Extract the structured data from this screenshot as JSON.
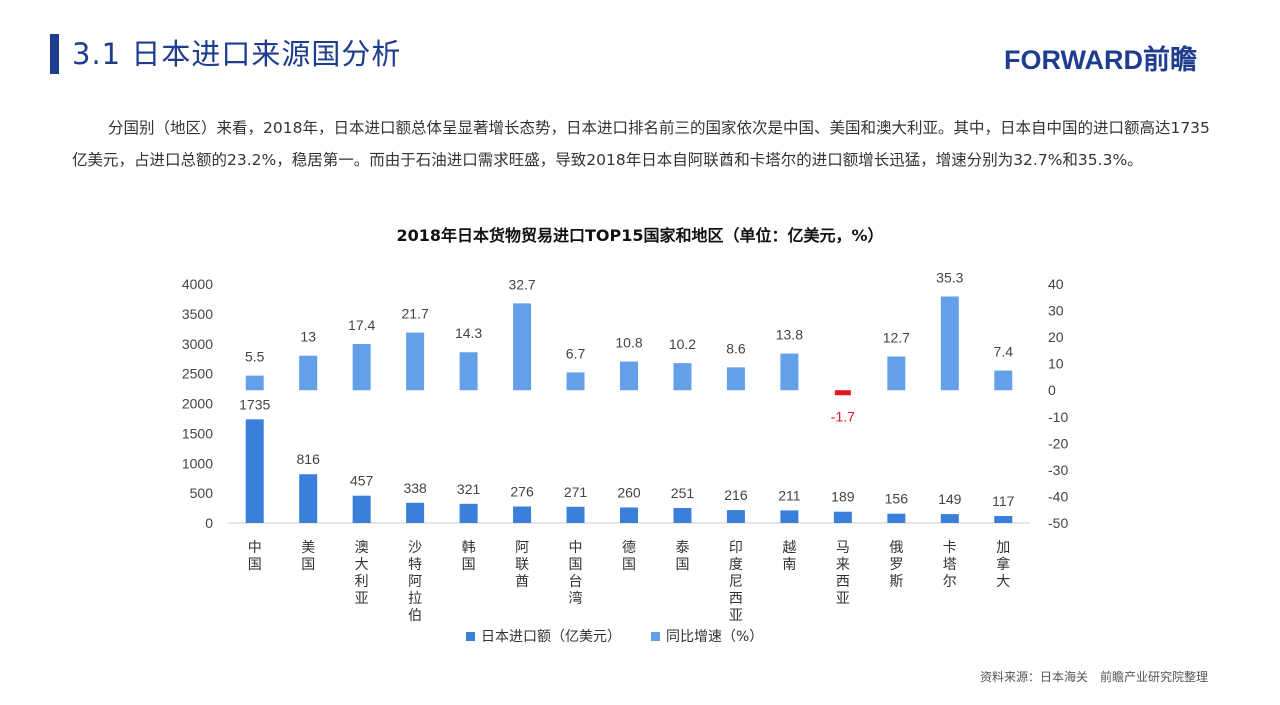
{
  "header": {
    "title": "3.1 日本进口来源国分析",
    "logo": "FORWARD前瞻"
  },
  "paragraph": "分国别（地区）来看，2018年，日本进口额总体呈显著增长态势，日本进口排名前三的国家依次是中国、美国和澳大利亚。其中，日本自中国的进口额高达1735亿美元，占进口总额的23.2%，稳居第一。而由于石油进口需求旺盛，导致2018年日本自阿联酋和卡塔尔的进口额增长迅猛，增速分别为32.7%和35.3%。",
  "source": "资料来源：日本海关　前瞻产业研究院整理",
  "colors": {
    "primary": "#3a7fdc",
    "secondary": "#64a0ea",
    "negative": "#e8141c",
    "title": "#1f3d8f"
  },
  "chart_data": {
    "type": "bar",
    "title": "2018年日本货物贸易进口TOP15国家和地区（单位：亿美元，%）",
    "categories": [
      "中国",
      "美国",
      "澳大利亚",
      "沙特阿拉伯",
      "韩国",
      "阿联酋",
      "中国台湾",
      "德国",
      "泰国",
      "印度尼西亚",
      "越南",
      "马来西亚",
      "俄罗斯",
      "卡塔尔",
      "加拿大"
    ],
    "series": [
      {
        "name": "日本进口额（亿美元）",
        "axis": "left",
        "values": [
          1735,
          816,
          457,
          338,
          321,
          276,
          271,
          260,
          251,
          216,
          211,
          189,
          156,
          149,
          117
        ]
      },
      {
        "name": "同比增速（%）",
        "axis": "right",
        "values": [
          5.5,
          13,
          17.4,
          21.7,
          14.3,
          32.7,
          6.7,
          10.8,
          10.2,
          8.6,
          13.8,
          -1.7,
          12.7,
          35.3,
          7.4
        ]
      }
    ],
    "ylim_left": [
      0,
      4000
    ],
    "yticks_left": [
      0,
      500,
      1000,
      1500,
      2000,
      2500,
      3000,
      3500,
      4000
    ],
    "ylim_right": [
      -50,
      40
    ],
    "yticks_right": [
      -50,
      -40,
      -30,
      -20,
      -10,
      0,
      10,
      20,
      30,
      40
    ],
    "legend": "bottom",
    "grid": false
  }
}
